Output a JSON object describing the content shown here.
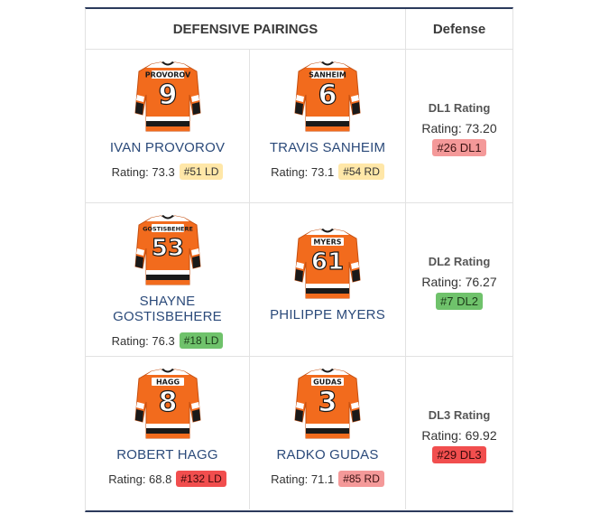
{
  "table": {
    "header_pairings": "DEFENSIVE PAIRINGS",
    "header_defense": "Defense"
  },
  "colors": {
    "jersey_orange": "#f26b1d",
    "jersey_black": "#1a1a1a",
    "name_blue": "#2b4a7a",
    "border_navy": "#2b3a5c"
  },
  "pairings": [
    {
      "left": {
        "name": "IVAN PROVOROV",
        "jersey_name": "PROVOROV",
        "number": "9",
        "rating_label": "Rating: 73.3",
        "rank": "#51 LD",
        "rank_color": "yellow"
      },
      "right": {
        "name": "TRAVIS SANHEIM",
        "jersey_name": "SANHEIM",
        "number": "6",
        "rating_label": "Rating: 73.1",
        "rank": "#54 RD",
        "rank_color": "yellow"
      },
      "line": {
        "title": "DL1 Rating",
        "rating_label": "Rating: 73.20",
        "rank": "#26 DL1",
        "rank_color": "pink"
      }
    },
    {
      "left": {
        "name": "SHAYNE GOSTISBEHERE",
        "jersey_name": "GOSTISBEHERE",
        "number": "53",
        "rating_label": "Rating: 76.3",
        "rank": "#18 LD",
        "rank_color": "green"
      },
      "right": {
        "name": "PHILIPPE MYERS",
        "jersey_name": "MYERS",
        "number": "61",
        "rating_label": "",
        "rank": "",
        "rank_color": ""
      },
      "line": {
        "title": "DL2 Rating",
        "rating_label": "Rating: 76.27",
        "rank": "#7 DL2",
        "rank_color": "green"
      }
    },
    {
      "left": {
        "name": "ROBERT HAGG",
        "jersey_name": "HAGG",
        "number": "8",
        "rating_label": "Rating: 68.8",
        "rank": "#132 LD",
        "rank_color": "red"
      },
      "right": {
        "name": "RADKO GUDAS",
        "jersey_name": "GUDAS",
        "number": "3",
        "rating_label": "Rating: 71.1",
        "rank": "#85 RD",
        "rank_color": "pink"
      },
      "line": {
        "title": "DL3 Rating",
        "rating_label": "Rating: 69.92",
        "rank": "#29 DL3",
        "rank_color": "red"
      }
    }
  ]
}
